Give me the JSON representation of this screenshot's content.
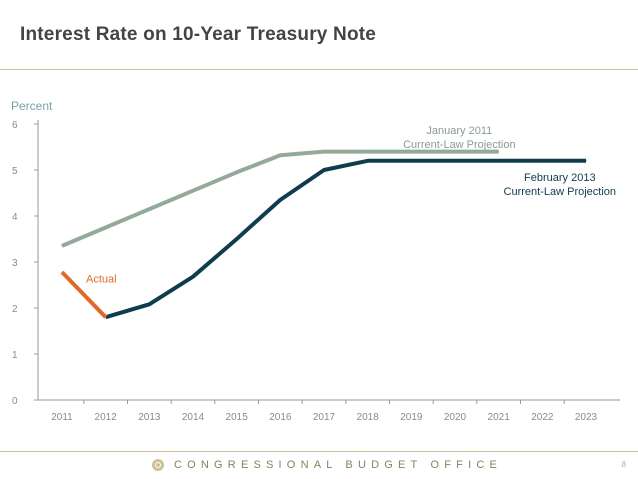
{
  "title": "Interest Rate on 10-Year Treasury Note",
  "footer": {
    "organization": "CONGRESSIONAL BUDGET OFFICE",
    "page_number": "8"
  },
  "chart_data": {
    "type": "line",
    "title": "Interest Rate on 10-Year Treasury Note",
    "ylabel": "Percent",
    "xlabel": "",
    "ylim": [
      0,
      6
    ],
    "yticks": [
      0,
      1,
      2,
      3,
      4,
      5,
      6
    ],
    "xlim": [
      2011,
      2023
    ],
    "xticks": [
      2011,
      2012,
      2013,
      2014,
      2015,
      2016,
      2017,
      2018,
      2019,
      2020,
      2021,
      2022,
      2023
    ],
    "grid": false,
    "series": [
      {
        "id": "jan2011",
        "label_lines": [
          "January 2011",
          "Current-Law Projection"
        ],
        "color": "#93aa9b",
        "x": [
          2011,
          2012,
          2013,
          2014,
          2015,
          2016,
          2017,
          2018,
          2019,
          2020,
          2021
        ],
        "values": [
          3.35,
          3.75,
          4.15,
          4.55,
          4.95,
          5.32,
          5.4,
          5.4,
          5.4,
          5.4,
          5.4
        ]
      },
      {
        "id": "feb2013",
        "label_lines": [
          "February 2013",
          "Current-Law Projection"
        ],
        "color": "#0f3d4e",
        "x": [
          2012,
          2013,
          2014,
          2015,
          2016,
          2017,
          2018,
          2019,
          2020,
          2021,
          2022,
          2023
        ],
        "values": [
          1.8,
          2.08,
          2.68,
          3.5,
          4.35,
          5.0,
          5.2,
          5.2,
          5.2,
          5.2,
          5.2,
          5.2
        ]
      },
      {
        "id": "actual",
        "label_lines": [
          "Actual"
        ],
        "color": "#e0692a",
        "x": [
          2011,
          2012
        ],
        "values": [
          2.78,
          1.8
        ]
      }
    ]
  }
}
